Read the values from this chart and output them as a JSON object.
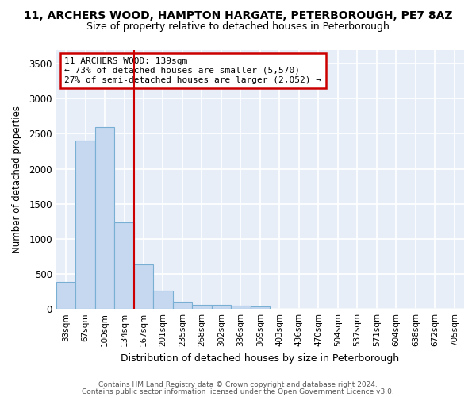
{
  "title_line1": "11, ARCHERS WOOD, HAMPTON HARGATE, PETERBOROUGH, PE7 8AZ",
  "title_line2": "Size of property relative to detached houses in Peterborough",
  "xlabel": "Distribution of detached houses by size in Peterborough",
  "ylabel": "Number of detached properties",
  "categories": [
    "33sqm",
    "67sqm",
    "100sqm",
    "134sqm",
    "167sqm",
    "201sqm",
    "235sqm",
    "268sqm",
    "302sqm",
    "336sqm",
    "369sqm",
    "403sqm",
    "436sqm",
    "470sqm",
    "504sqm",
    "537sqm",
    "571sqm",
    "604sqm",
    "638sqm",
    "672sqm",
    "705sqm"
  ],
  "values": [
    390,
    2400,
    2600,
    1240,
    640,
    260,
    100,
    55,
    55,
    50,
    35,
    0,
    0,
    0,
    0,
    0,
    0,
    0,
    0,
    0,
    0
  ],
  "bar_color": "#c5d8f0",
  "bar_edge_color": "#7aafd4",
  "vline_x": 3,
  "vline_color": "#cc0000",
  "annotation_text": "11 ARCHERS WOOD: 139sqm\n← 73% of detached houses are smaller (5,570)\n27% of semi-detached houses are larger (2,052) →",
  "annotation_box_color": "#ffffff",
  "annotation_box_edge": "#cc0000",
  "plot_bg_color": "#e8eef8",
  "fig_bg_color": "#ffffff",
  "grid_color": "#ffffff",
  "ylim": [
    0,
    3700
  ],
  "yticks": [
    0,
    500,
    1000,
    1500,
    2000,
    2500,
    3000,
    3500
  ],
  "footer_line1": "Contains HM Land Registry data © Crown copyright and database right 2024.",
  "footer_line2": "Contains public sector information licensed under the Open Government Licence v3.0."
}
